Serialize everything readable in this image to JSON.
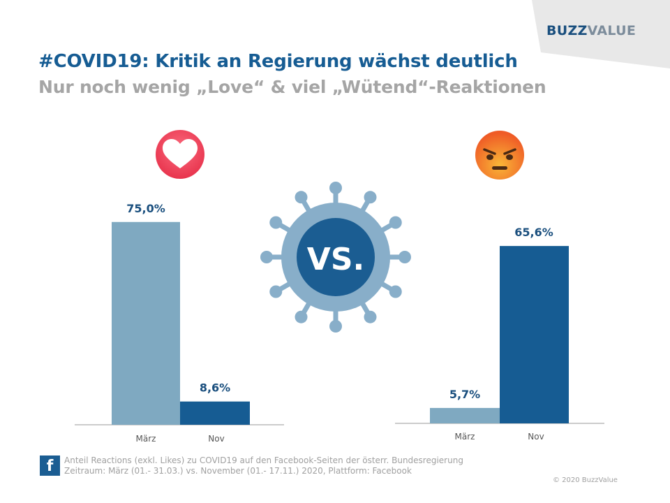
{
  "logo": {
    "part1": "BUZZ",
    "part2": "VALUE"
  },
  "title": "#COVID19: Kritik an Regierung wächst deutlich",
  "subtitle": "Nur noch wenig „Love“ & viel „Wütend“-Reaktionen",
  "vs_label": "VS.",
  "chart_data": [
    {
      "type": "bar",
      "categories": [
        "März",
        "Nov"
      ],
      "values": [
        75.0,
        8.6
      ],
      "value_labels": [
        "75,0%",
        "8,6%"
      ],
      "ylim": [
        0,
        100
      ],
      "reaction_icon": "love-heart-icon",
      "colors": [
        "#7fa9c1",
        "#165c93"
      ]
    },
    {
      "type": "bar",
      "categories": [
        "März",
        "Nov"
      ],
      "values": [
        5.7,
        65.6
      ],
      "value_labels": [
        "5,7%",
        "65,6%"
      ],
      "ylim": [
        0,
        100
      ],
      "reaction_icon": "angry-face-icon",
      "colors": [
        "#7fa9c1",
        "#165c93"
      ]
    }
  ],
  "footer": {
    "source_line1": "Anteil Reactions (exkl. Likes) zu COVID19 auf den Facebook-Seiten  der österr. Bundesregierung",
    "source_line2": "Zeitraum: März (01.- 31.03.) vs. November (01.- 17.11.) 2020, Plattform: Facebook",
    "facebook_glyph": "f",
    "copyright": "© 2020 BuzzValue"
  }
}
